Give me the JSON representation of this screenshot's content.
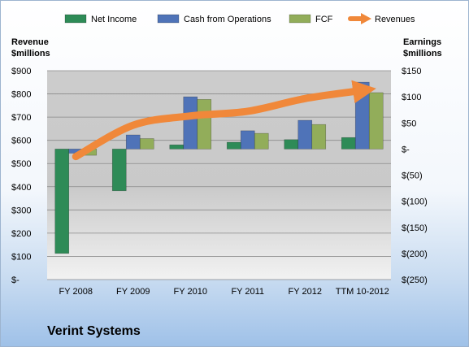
{
  "chart_data": {
    "type": "bar",
    "title": "Verint Systems",
    "categories": [
      "FY 2008",
      "FY 2009",
      "FY 2010",
      "FY 2011",
      "FY 2012",
      "TTM 10-2012"
    ],
    "series": [
      {
        "name": "Net Income",
        "axis": "right",
        "kind": "bar",
        "color": "#2e8b57",
        "values": [
          -200,
          -80,
          8,
          13,
          18,
          22
        ]
      },
      {
        "name": "Cash from Operations",
        "axis": "right",
        "kind": "bar",
        "color": "#4f73b8",
        "values": [
          -8,
          27,
          100,
          35,
          55,
          128
        ]
      },
      {
        "name": "FCF",
        "axis": "right",
        "kind": "bar",
        "color": "#92ad5a",
        "values": [
          -12,
          20,
          95,
          30,
          47,
          108
        ]
      },
      {
        "name": "Revenues",
        "axis": "left",
        "kind": "line",
        "color": "#f0883a",
        "values": [
          530,
          665,
          705,
          725,
          780,
          815
        ]
      }
    ],
    "left_axis": {
      "label": "Revenue\n$millions",
      "ylim": [
        0,
        900
      ],
      "ticks": [
        "$-",
        "$100",
        "$200",
        "$300",
        "$400",
        "$500",
        "$600",
        "$700",
        "$800",
        "$900"
      ]
    },
    "right_axis": {
      "label": "Earnings\n$millions",
      "ylim": [
        -250,
        150
      ],
      "ticks": [
        "$(250)",
        "$(200)",
        "$(150)",
        "$(100)",
        "$(50)",
        "$-",
        "$50",
        "$100",
        "$150"
      ]
    },
    "legend_position": "top",
    "grid": true
  }
}
